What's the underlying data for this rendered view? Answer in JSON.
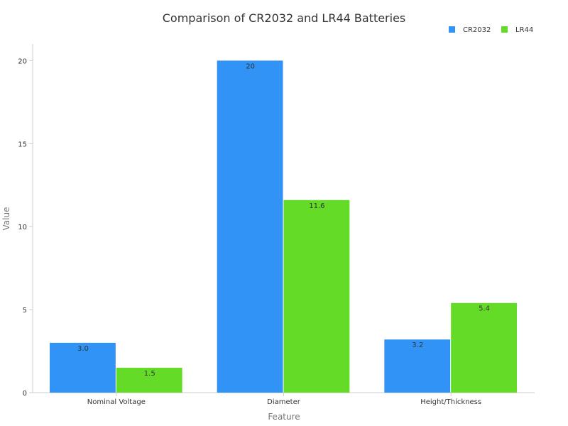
{
  "chart_data": {
    "type": "bar",
    "title": "Comparison of CR2032 and LR44 Batteries",
    "xlabel": "Feature",
    "ylabel": "Value",
    "categories": [
      "Nominal Voltage",
      "Diameter",
      "Height/Thickness"
    ],
    "series": [
      {
        "name": "CR2032",
        "color": "#3093F5",
        "values": [
          3.0,
          20,
          3.2
        ],
        "labels": [
          "3.0",
          "20",
          "3.2"
        ]
      },
      {
        "name": "LR44",
        "color": "#63DB27",
        "values": [
          1.5,
          11.6,
          5.4
        ],
        "labels": [
          "1.5",
          "11.6",
          "5.4"
        ]
      }
    ],
    "ylim": [
      0,
      21
    ],
    "yticks": [
      0,
      5,
      10,
      15,
      20
    ],
    "grid": false,
    "legend_position": "top-right"
  }
}
